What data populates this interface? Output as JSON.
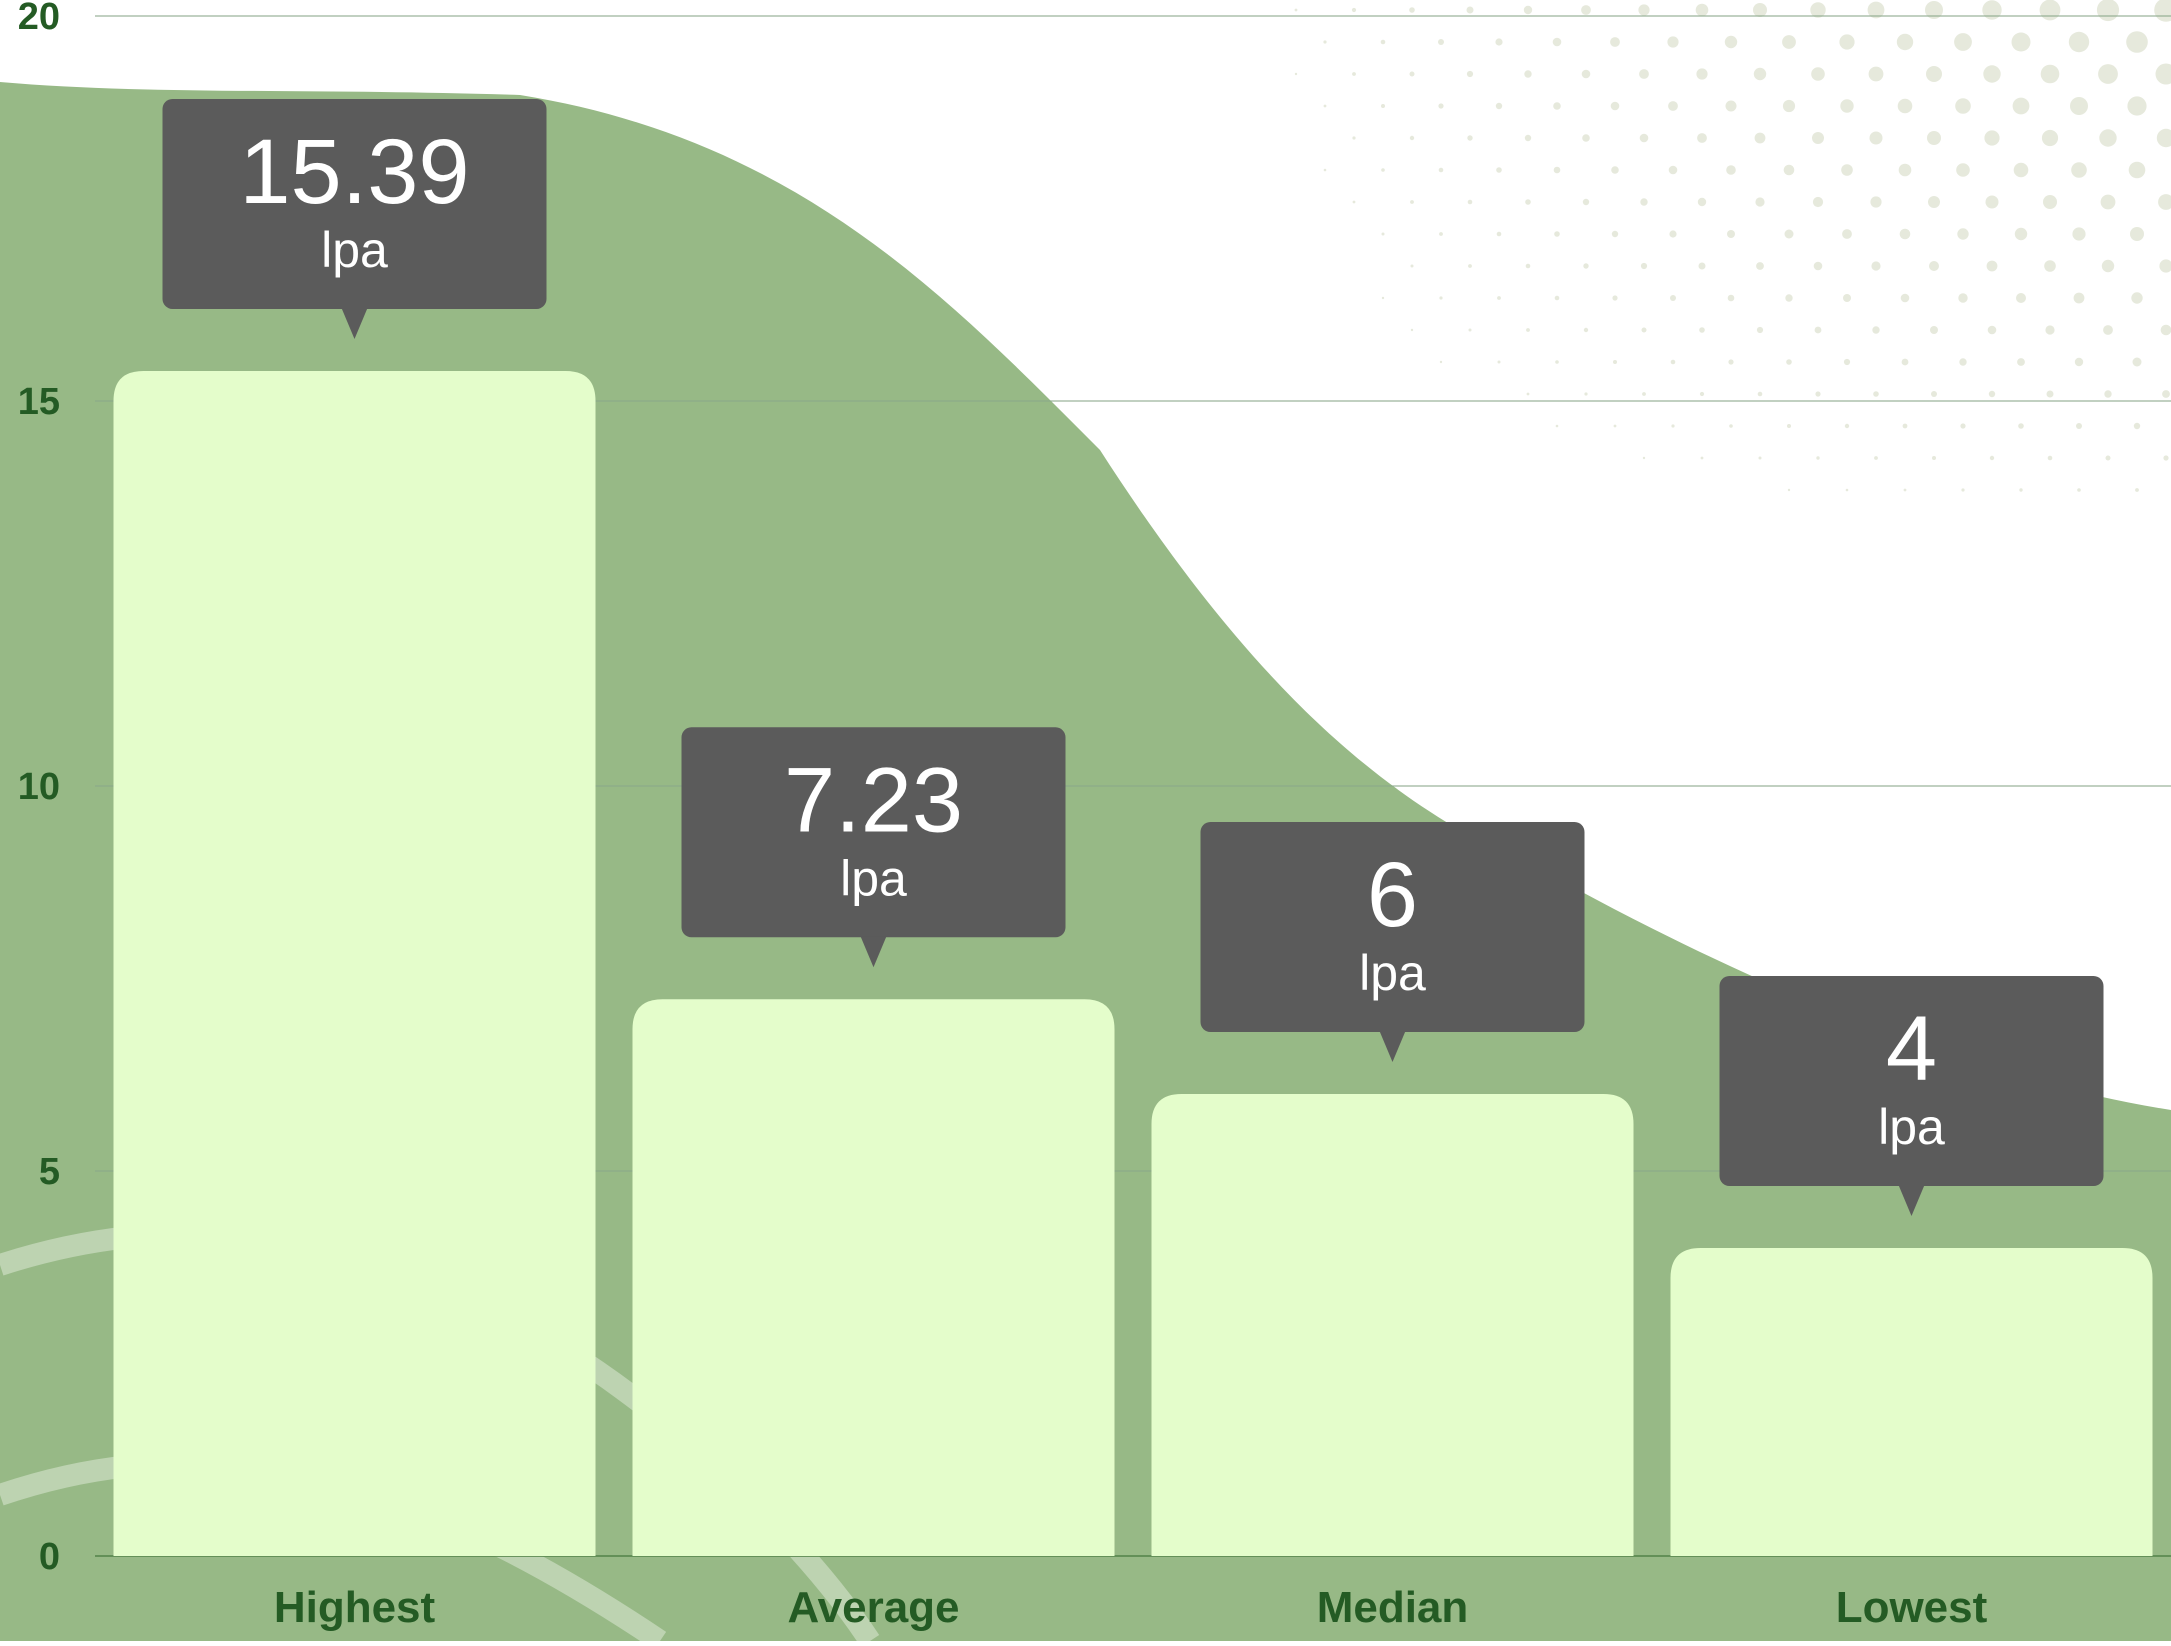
{
  "colors": {
    "background": "#ffffff",
    "blob": "#97b986",
    "bar": "#e4fdcb",
    "tooltip": "#5b5b5b",
    "tooltip_text": "#ffffff",
    "axis_text": "#245b24",
    "grid": "#8aa88a",
    "dots": "#e6e9dc",
    "arc": "#c3d7b8"
  },
  "chart_data": {
    "type": "bar",
    "title": "",
    "xlabel": "",
    "ylabel": "",
    "categories": [
      "Highest",
      "Average",
      "Median",
      "Lowest"
    ],
    "series": [
      {
        "values": [
          15.39,
          7.23,
          6,
          4
        ],
        "labels": [
          "15.39",
          "7.23",
          "6",
          "4"
        ],
        "unit": "lpa"
      }
    ],
    "ylim": [
      0,
      20
    ],
    "yticks": [
      0,
      5,
      10,
      15,
      20
    ],
    "ytick_labels": [
      "0",
      "5",
      "10",
      "15",
      "20"
    ],
    "grid": true,
    "legend": "none"
  }
}
